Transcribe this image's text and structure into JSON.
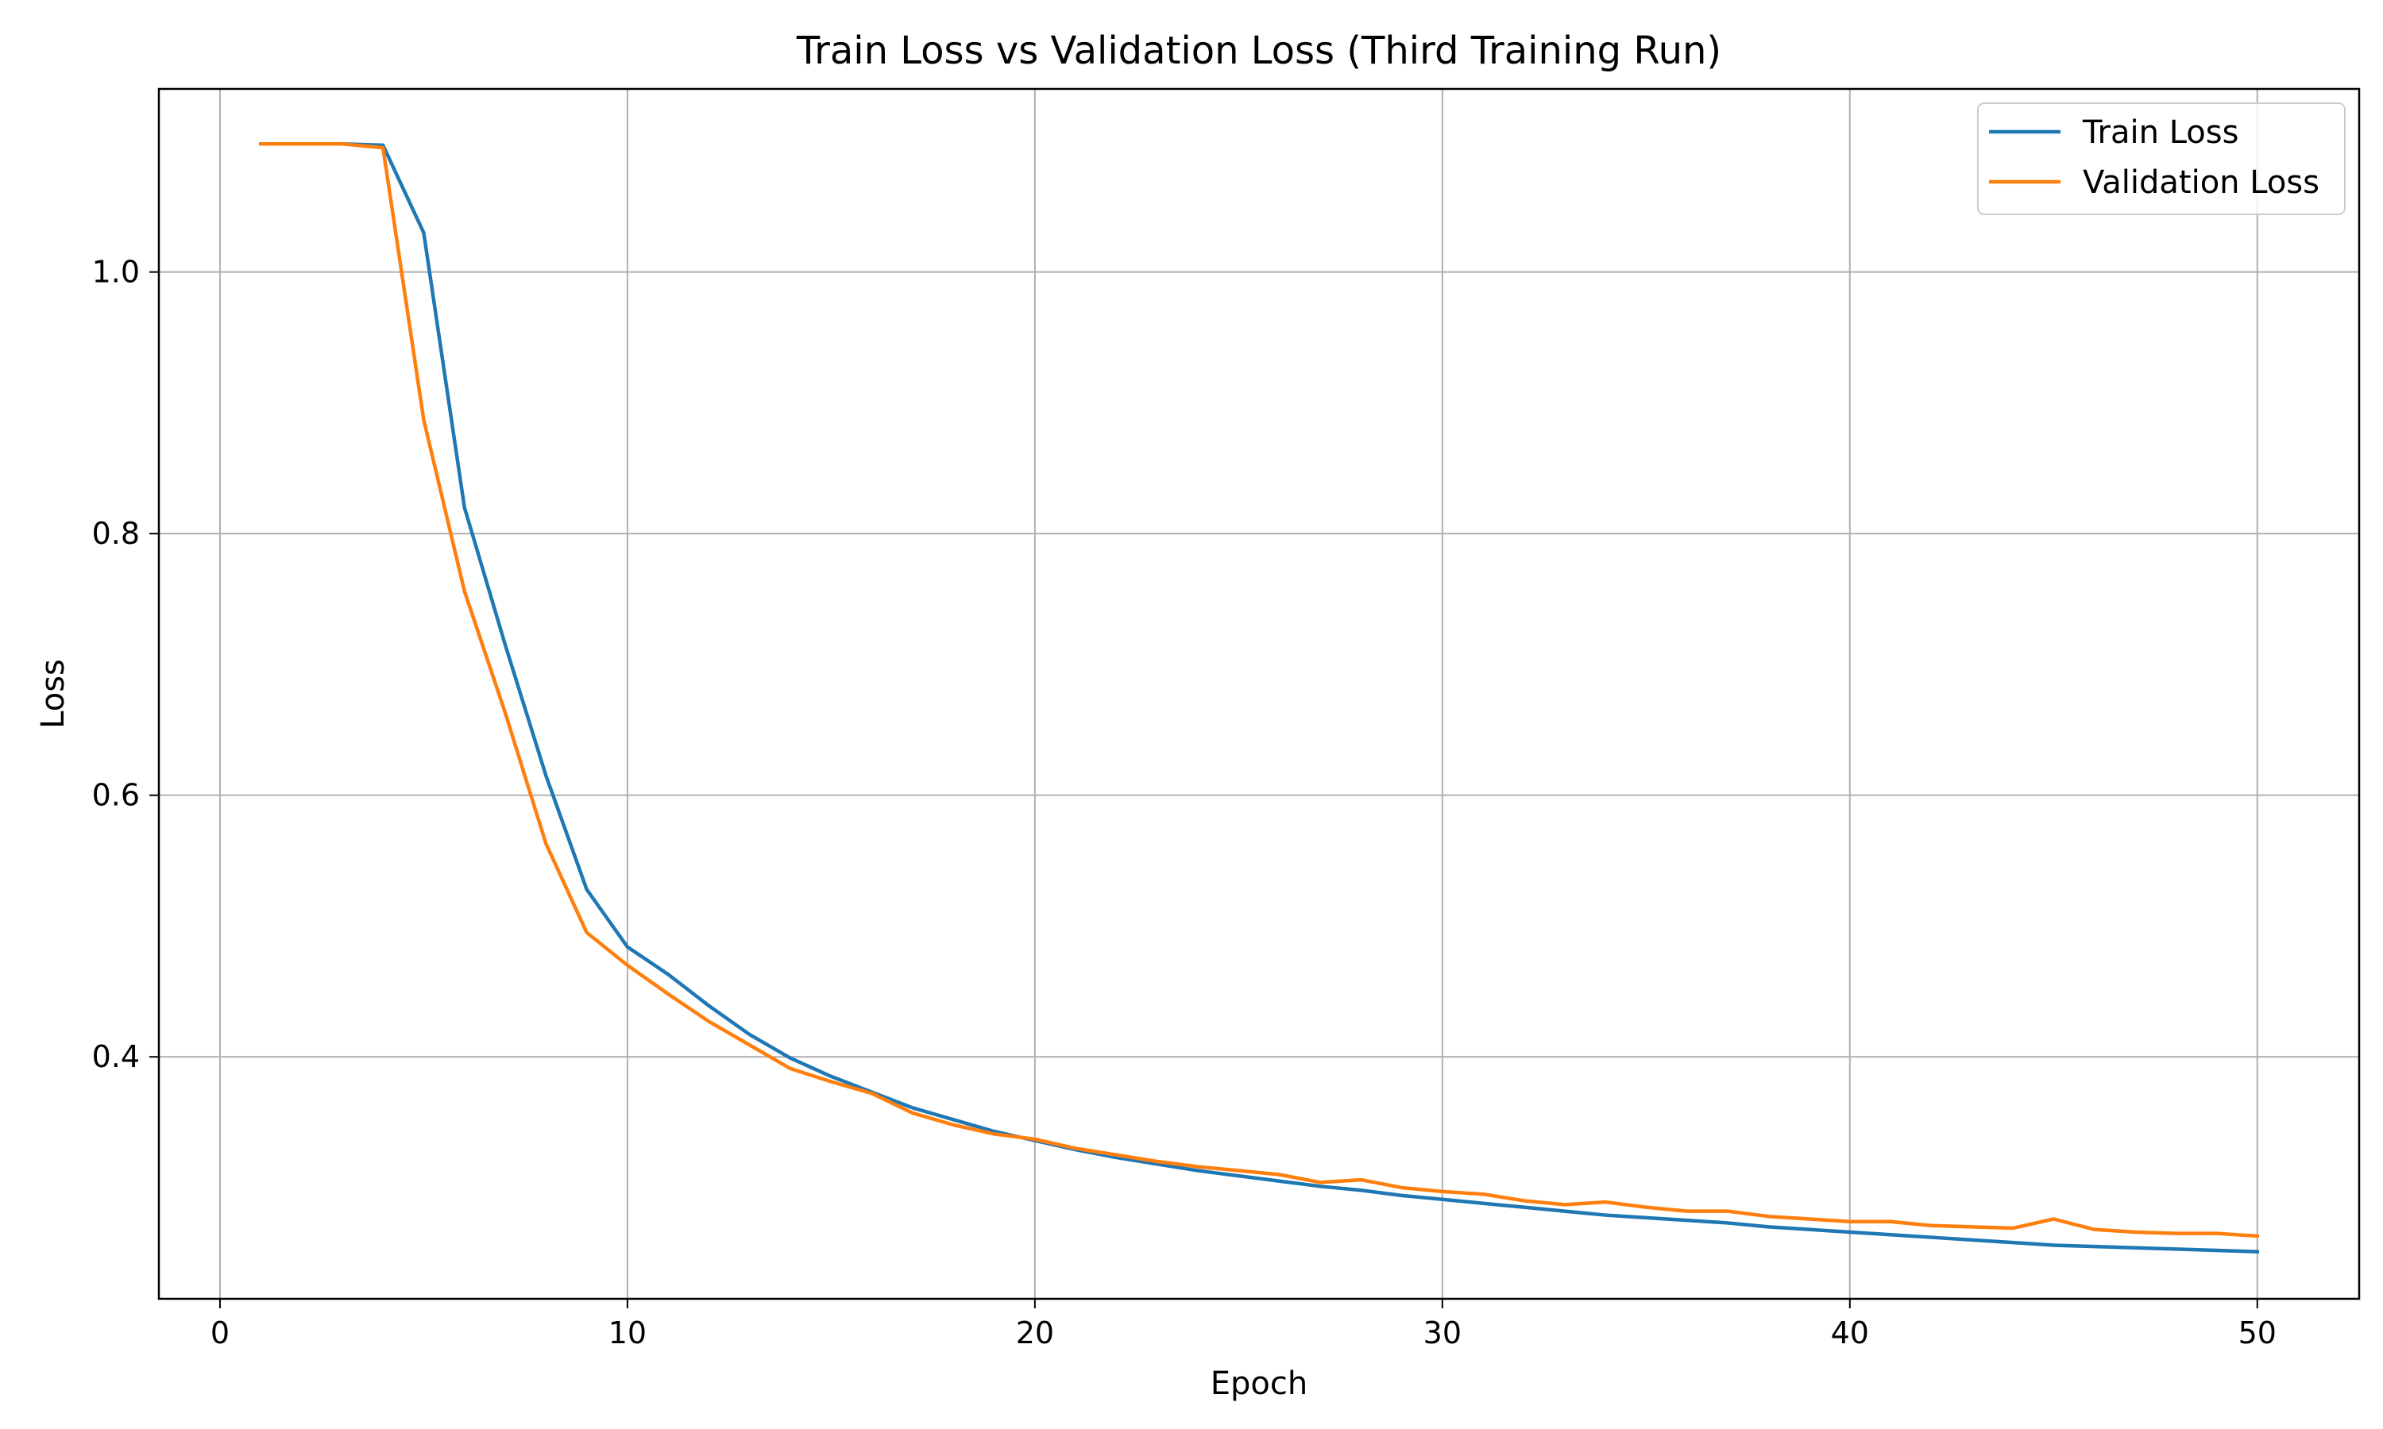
{
  "chart_data": {
    "type": "line",
    "title": "Train Loss vs Validation Loss (Third Training Run)",
    "xlabel": "Epoch",
    "ylabel": "Loss",
    "xlim": [
      -1.5,
      52.5
    ],
    "ylim": [
      0.215,
      1.14
    ],
    "xticks": [
      0,
      10,
      20,
      30,
      40,
      50
    ],
    "xtick_labels": [
      "0",
      "10",
      "20",
      "30",
      "40",
      "50"
    ],
    "yticks": [
      0.4,
      0.6,
      0.8,
      1.0
    ],
    "ytick_labels": [
      "0.4",
      "0.6",
      "0.8",
      "1.0"
    ],
    "grid": true,
    "legend_position": "top-right",
    "x": [
      1,
      2,
      3,
      4,
      5,
      6,
      7,
      8,
      9,
      10,
      11,
      12,
      13,
      14,
      15,
      16,
      17,
      18,
      19,
      20,
      21,
      22,
      23,
      24,
      25,
      26,
      27,
      28,
      29,
      30,
      31,
      32,
      33,
      34,
      35,
      36,
      37,
      38,
      39,
      40,
      41,
      42,
      43,
      44,
      45,
      46,
      47,
      48,
      49,
      50
    ],
    "series": [
      {
        "name": "Train Loss",
        "color": "#1f77b4",
        "values": [
          1.098,
          1.098,
          1.098,
          1.097,
          1.03,
          0.82,
          0.715,
          0.615,
          0.528,
          0.484,
          0.463,
          0.439,
          0.417,
          0.399,
          0.385,
          0.373,
          0.361,
          0.352,
          0.343,
          0.336,
          0.329,
          0.323,
          0.318,
          0.313,
          0.309,
          0.305,
          0.301,
          0.298,
          0.294,
          0.291,
          0.288,
          0.285,
          0.282,
          0.279,
          0.277,
          0.275,
          0.273,
          0.27,
          0.268,
          0.266,
          0.264,
          0.262,
          0.26,
          0.258,
          0.256,
          0.255,
          0.254,
          0.253,
          0.252,
          0.251
        ]
      },
      {
        "name": "Validation Loss",
        "color": "#ff7f0e",
        "values": [
          1.098,
          1.098,
          1.098,
          1.095,
          0.887,
          0.756,
          0.663,
          0.563,
          0.495,
          0.47,
          0.448,
          0.427,
          0.409,
          0.391,
          0.381,
          0.372,
          0.357,
          0.348,
          0.341,
          0.337,
          0.33,
          0.325,
          0.32,
          0.316,
          0.313,
          0.31,
          0.304,
          0.306,
          0.3,
          0.297,
          0.295,
          0.29,
          0.287,
          0.289,
          0.285,
          0.282,
          0.282,
          0.278,
          0.276,
          0.274,
          0.274,
          0.271,
          0.27,
          0.269,
          0.276,
          0.268,
          0.266,
          0.265,
          0.265,
          0.263
        ]
      }
    ]
  }
}
